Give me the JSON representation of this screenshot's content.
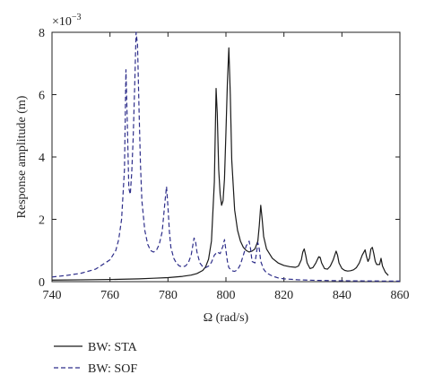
{
  "chart_data": {
    "type": "line",
    "title": "",
    "xlabel": "Ω (rad/s)",
    "ylabel": "Response amplitude (m)",
    "y_multiplier_label": "×10",
    "y_multiplier_exponent": "−3",
    "xlim": [
      740,
      860
    ],
    "ylim": [
      0,
      8
    ],
    "xticks": [
      "740",
      "760",
      "780",
      "800",
      "820",
      "840",
      "860"
    ],
    "yticks": [
      "0",
      "2",
      "4",
      "6",
      "8"
    ],
    "xtick_values": [
      740,
      760,
      780,
      800,
      820,
      840,
      860
    ],
    "ytick_values": [
      0,
      2,
      4,
      6,
      8
    ],
    "grid": false,
    "legend_placement": "below",
    "series": [
      {
        "name": "BW: STA",
        "style": "solid",
        "color": "#1a1a1a",
        "x": [
          740,
          750,
          760,
          770,
          775,
          780,
          785,
          788,
          790,
          792,
          793,
          794,
          795,
          796,
          796.6,
          797,
          797.5,
          798,
          798.5,
          799,
          799.5,
          800,
          800.5,
          801,
          801.5,
          802,
          803,
          804,
          805,
          806,
          807,
          808,
          809,
          810,
          811,
          811.5,
          812,
          812.5,
          813,
          814,
          816,
          818,
          820,
          822,
          824,
          825,
          826,
          826.5,
          827,
          827.5,
          828,
          829,
          830,
          831,
          832,
          832.5,
          833,
          834,
          835,
          836,
          837,
          838,
          838.5,
          839,
          840,
          841,
          842,
          843,
          844,
          845,
          846,
          847,
          848,
          848.5,
          849,
          849.5,
          850,
          850.5,
          851,
          851.5,
          852,
          853,
          853.5,
          854,
          855,
          856
        ],
        "y": [
          0.05,
          0.06,
          0.07,
          0.09,
          0.11,
          0.13,
          0.17,
          0.21,
          0.26,
          0.36,
          0.48,
          0.72,
          1.3,
          3.2,
          6.2,
          5.4,
          3.6,
          2.8,
          2.45,
          2.6,
          3.3,
          4.8,
          6.4,
          7.5,
          6.0,
          3.9,
          2.3,
          1.65,
          1.3,
          1.1,
          1.0,
          0.95,
          0.98,
          1.05,
          1.3,
          1.8,
          2.45,
          2.0,
          1.45,
          1.05,
          0.75,
          0.6,
          0.52,
          0.48,
          0.46,
          0.5,
          0.7,
          0.95,
          1.05,
          0.85,
          0.6,
          0.42,
          0.45,
          0.6,
          0.8,
          0.78,
          0.6,
          0.42,
          0.4,
          0.5,
          0.7,
          0.98,
          0.85,
          0.6,
          0.42,
          0.36,
          0.34,
          0.35,
          0.38,
          0.45,
          0.6,
          0.85,
          1.02,
          0.8,
          0.65,
          0.75,
          1.05,
          1.1,
          0.9,
          0.65,
          0.55,
          0.55,
          0.75,
          0.5,
          0.3,
          0.2
        ]
      },
      {
        "name": "BW: SOF",
        "style": "dashed",
        "color": "#2e2e8a",
        "x": [
          740,
          745,
          750,
          755,
          760,
          762,
          763,
          764,
          765,
          765.5,
          766,
          766.5,
          767,
          767.5,
          768,
          768.5,
          769,
          769.5,
          770,
          770.5,
          771,
          772,
          773,
          774,
          775,
          776,
          777,
          778,
          779,
          779.5,
          780,
          780.5,
          781,
          782,
          783,
          784,
          785,
          786,
          787,
          788,
          789,
          789.5,
          790,
          791,
          792,
          793,
          794,
          795,
          796,
          797,
          798,
          799,
          799.5,
          800,
          800.5,
          801,
          802,
          803,
          804,
          805,
          806,
          807,
          808,
          808.5,
          809,
          810,
          810.5,
          811,
          811.5,
          812,
          813,
          814,
          816,
          818,
          820,
          825,
          830,
          835,
          840,
          845,
          850,
          855,
          860
        ],
        "y": [
          0.15,
          0.2,
          0.27,
          0.4,
          0.7,
          1.0,
          1.35,
          2.0,
          3.6,
          6.8,
          5.0,
          3.0,
          2.8,
          3.5,
          4.6,
          6.2,
          8.0,
          7.6,
          5.6,
          3.8,
          2.6,
          1.65,
          1.2,
          1.0,
          0.95,
          1.0,
          1.2,
          1.6,
          2.6,
          3.05,
          2.4,
          1.6,
          1.1,
          0.75,
          0.58,
          0.5,
          0.48,
          0.5,
          0.6,
          0.85,
          1.4,
          1.3,
          0.95,
          0.6,
          0.48,
          0.45,
          0.5,
          0.62,
          0.85,
          0.95,
          0.9,
          1.15,
          1.35,
          1.0,
          0.65,
          0.45,
          0.35,
          0.33,
          0.38,
          0.55,
          0.85,
          1.15,
          1.3,
          1.05,
          0.65,
          0.6,
          0.9,
          1.25,
          1.05,
          0.65,
          0.4,
          0.28,
          0.18,
          0.12,
          0.09,
          0.06,
          0.045,
          0.035,
          0.03,
          0.025,
          0.022,
          0.02,
          0.018
        ]
      }
    ]
  }
}
